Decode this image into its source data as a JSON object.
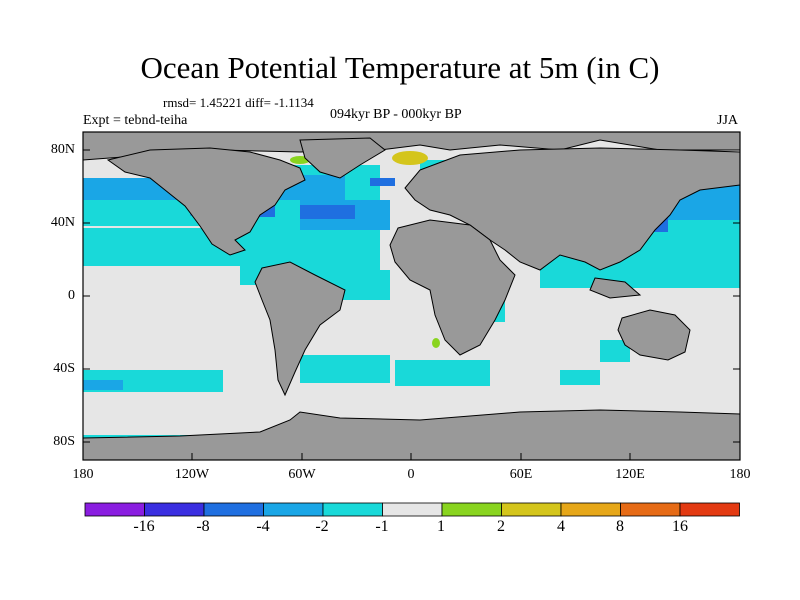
{
  "title": "Ocean Potential Temperature at 5m (in C)",
  "stats": "rmsd= 1.45221 diff= -1.1134",
  "subtitle": "094kyr BP - 000kyr BP",
  "experiment": "Expt = tebnd-teiha",
  "season": "JJA",
  "map": {
    "projection": "cylindrical equidistant",
    "lon_range": [
      -180,
      180
    ],
    "lat_range": [
      -90,
      90
    ],
    "lat_ticks": [
      {
        "label": "80N",
        "value": 80
      },
      {
        "label": "40N",
        "value": 40
      },
      {
        "label": "0",
        "value": 0
      },
      {
        "label": "40S",
        "value": -40
      },
      {
        "label": "80S",
        "value": -80
      }
    ],
    "lon_ticks": [
      {
        "label": "180",
        "value": -180
      },
      {
        "label": "120W",
        "value": -120
      },
      {
        "label": "60W",
        "value": -60
      },
      {
        "label": "0",
        "value": 0
      },
      {
        "label": "60E",
        "value": 60
      },
      {
        "label": "120E",
        "value": 120
      },
      {
        "label": "180",
        "value": 180
      }
    ]
  },
  "colorbar": {
    "colors": [
      "#8a1de0",
      "#3a2ee0",
      "#1f6fe0",
      "#1aa6e6",
      "#19d9d9",
      "#e6e6e6",
      "#89d41f",
      "#d4c51c",
      "#e6a719",
      "#e66b16",
      "#e33a12"
    ],
    "labels": [
      "-16",
      "-8",
      "-4",
      "-2",
      "-1",
      "1",
      "2",
      "4",
      "8",
      "16"
    ]
  },
  "colors": {
    "land": "#999999",
    "ocean_neutral": "#e6e6e6",
    "cool_light": "#19d9d9",
    "cool_mid": "#1aa6e6",
    "cool_strong": "#1f6fe0",
    "warm_green": "#89d41f",
    "warm_yellow": "#d4c51c"
  }
}
